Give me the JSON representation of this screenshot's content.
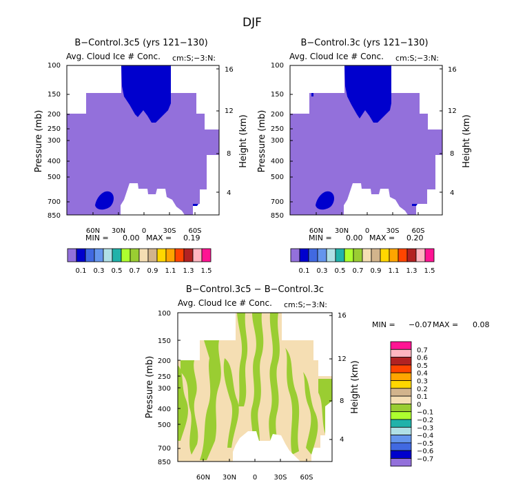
{
  "page": {
    "title": "DJF"
  },
  "colors": {
    "left_fill": "#9370DB",
    "deep_fill": "#0000CD",
    "diff_pos_fill": "#F5DEB3",
    "diff_neg_fill": "#9ACD32",
    "axis": "#000000"
  },
  "chart_data": [
    {
      "type": "contour",
      "title": "B−Control.3c5 (yrs 121−130)",
      "subtitle_left": "Avg. Cloud Ice # Conc.",
      "subtitle_right": "cm:S;−3:N:",
      "ylabel": "Pressure (mb)",
      "ylabel_right": "Height (km)",
      "y_ticks": [
        "100",
        "150",
        "200",
        "250",
        "300",
        "400",
        "500",
        "700",
        "850"
      ],
      "height_ticks": [
        "16",
        "12",
        "8",
        "4"
      ],
      "x_ticks": [
        "60N",
        "30N",
        "0",
        "30S",
        "60S"
      ],
      "min_label": "MIN =",
      "min_value": "0.00",
      "max_label": "MAX =",
      "max_value": "0.19",
      "colorbar_colors": [
        "#9370DB",
        "#0000CD",
        "#4169E1",
        "#6495ED",
        "#B0E0E6",
        "#20B2AA",
        "#ADFF2F",
        "#9ACD32",
        "#F5DEB3",
        "#D2B48C",
        "#FFD700",
        "#FFA500",
        "#FF4500",
        "#B22222",
        "#FFB6C1",
        "#FF1493"
      ],
      "colorbar_labels": [
        "0.1",
        "0.3",
        "0.5",
        "0.7",
        "0.9",
        "1.1",
        "1.3",
        "1.5"
      ]
    },
    {
      "type": "contour",
      "title": "B−Control.3c (yrs 121−130)",
      "subtitle_left": "Avg. Cloud Ice # Conc.",
      "subtitle_right": "cm:S;−3:N:",
      "ylabel": "Pressure (mb)",
      "ylabel_right": "Height (km)",
      "y_ticks": [
        "100",
        "150",
        "200",
        "250",
        "300",
        "400",
        "500",
        "700",
        "850"
      ],
      "height_ticks": [
        "16",
        "12",
        "8",
        "4"
      ],
      "x_ticks": [
        "60N",
        "30N",
        "0",
        "30S",
        "60S"
      ],
      "min_label": "MIN =",
      "min_value": "0.00",
      "max_label": "MAX =",
      "max_value": "0.20",
      "colorbar_colors": [
        "#9370DB",
        "#0000CD",
        "#4169E1",
        "#6495ED",
        "#B0E0E6",
        "#20B2AA",
        "#ADFF2F",
        "#9ACD32",
        "#F5DEB3",
        "#D2B48C",
        "#FFD700",
        "#FFA500",
        "#FF4500",
        "#B22222",
        "#FFB6C1",
        "#FF1493"
      ],
      "colorbar_labels": [
        "0.1",
        "0.3",
        "0.5",
        "0.7",
        "0.9",
        "1.1",
        "1.3",
        "1.5"
      ]
    },
    {
      "type": "contour",
      "title": "B−Control.3c5 − B−Control.3c",
      "subtitle_left": "Avg. Cloud Ice # Conc.",
      "subtitle_right": "cm:S;−3:N:",
      "ylabel": "Pressure (mb)",
      "ylabel_right": "Height (km)",
      "y_ticks": [
        "100",
        "150",
        "200",
        "250",
        "300",
        "400",
        "500",
        "700",
        "850"
      ],
      "height_ticks": [
        "16",
        "12",
        "8",
        "4"
      ],
      "x_ticks": [
        "60N",
        "30N",
        "0",
        "30S",
        "60S"
      ],
      "min_label": "MIN =",
      "min_value": "−0.07",
      "max_label": "MAX =",
      "max_value": "0.08",
      "colorbar_colors": [
        "#9370DB",
        "#0000CD",
        "#4169E1",
        "#6495ED",
        "#B0E0E6",
        "#20B2AA",
        "#ADFF2F",
        "#9ACD32",
        "#F5DEB3",
        "#D2B48C",
        "#FFD700",
        "#FFA500",
        "#FF4500",
        "#B22222",
        "#FFB6C1",
        "#FF1493"
      ],
      "colorbar_labels": [
        "0.7",
        "0.6",
        "0.5",
        "0.4",
        "0.3",
        "0.2",
        "0.1",
        "0",
        "−0.1",
        "−0.2",
        "−0.3",
        "−0.4",
        "−0.5",
        "−0.6",
        "−0.7"
      ]
    }
  ]
}
